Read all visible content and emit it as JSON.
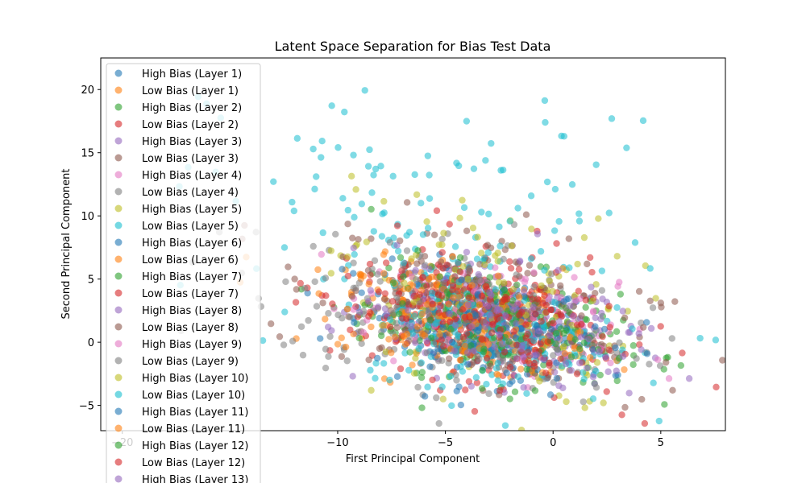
{
  "chart_data": {
    "type": "scatter",
    "title": "Latent Space Separation for Bias Test Data",
    "xlabel": "First Principal Component",
    "ylabel": "Second Principal Component",
    "xlim": [
      -21,
      8
    ],
    "ylim": [
      -7,
      22.5
    ],
    "xticks": [
      -20,
      -10,
      -5,
      0,
      5
    ],
    "xtick_labels": [
      "−20",
      "−10",
      "−5",
      "0",
      "5"
    ],
    "yticks": [
      -5,
      0,
      5,
      10,
      15,
      20
    ],
    "ytick_labels": [
      "−5",
      "0",
      "5",
      "10",
      "15",
      "20"
    ],
    "grid": false,
    "legend_position": "top-left",
    "series": [
      {
        "name": "High Bias (Layer 1)",
        "color": "#1f77b4",
        "center": [
          -3.5,
          1.5
        ],
        "spread": [
          2.8,
          2.0
        ],
        "count": 90
      },
      {
        "name": "Low Bias (Layer 1)",
        "color": "#ff7f0e",
        "center": [
          -4.5,
          2.0
        ],
        "spread": [
          2.8,
          2.0
        ],
        "count": 90
      },
      {
        "name": "High Bias (Layer 2)",
        "color": "#2ca02c",
        "center": [
          -3.0,
          1.5
        ],
        "spread": [
          3.0,
          2.2
        ],
        "count": 90
      },
      {
        "name": "Low Bias (Layer 2)",
        "color": "#d62728",
        "center": [
          -4.0,
          2.2
        ],
        "spread": [
          3.2,
          2.4
        ],
        "count": 110
      },
      {
        "name": "High Bias (Layer 3)",
        "color": "#9467bd",
        "center": [
          -2.5,
          1.2
        ],
        "spread": [
          3.0,
          2.2
        ],
        "count": 70
      },
      {
        "name": "Low Bias (Layer 3)",
        "color": "#8c564b",
        "center": [
          -3.5,
          3.5
        ],
        "spread": [
          3.8,
          3.0
        ],
        "count": 110
      },
      {
        "name": "High Bias (Layer 4)",
        "color": "#e377c2",
        "center": [
          -3.0,
          1.8
        ],
        "spread": [
          3.0,
          2.2
        ],
        "count": 70
      },
      {
        "name": "Low Bias (Layer 4)",
        "color": "#7f7f7f",
        "center": [
          -4.5,
          2.5
        ],
        "spread": [
          4.2,
          3.2
        ],
        "count": 130
      },
      {
        "name": "High Bias (Layer 5)",
        "color": "#bcbd22",
        "center": [
          -3.5,
          4.0
        ],
        "spread": [
          3.5,
          4.0
        ],
        "count": 70
      },
      {
        "name": "Low Bias (Layer 5)",
        "color": "#17becf",
        "center": [
          -5.0,
          8.5
        ],
        "spread": [
          5.5,
          5.5
        ],
        "count": 140
      },
      {
        "name": "High Bias (Layer 6)",
        "color": "#1f77b4",
        "center": [
          -3.0,
          1.0
        ],
        "spread": [
          2.8,
          2.0
        ],
        "count": 80
      },
      {
        "name": "Low Bias (Layer 6)",
        "color": "#ff7f0e",
        "center": [
          -4.0,
          1.8
        ],
        "spread": [
          2.8,
          2.0
        ],
        "count": 90
      },
      {
        "name": "High Bias (Layer 7)",
        "color": "#2ca02c",
        "center": [
          -3.0,
          1.5
        ],
        "spread": [
          3.0,
          2.2
        ],
        "count": 80
      },
      {
        "name": "Low Bias (Layer 7)",
        "color": "#d62728",
        "center": [
          -3.5,
          2.5
        ],
        "spread": [
          3.2,
          2.4
        ],
        "count": 110
      },
      {
        "name": "High Bias (Layer 8)",
        "color": "#9467bd",
        "center": [
          -2.5,
          1.0
        ],
        "spread": [
          3.2,
          2.2
        ],
        "count": 70
      },
      {
        "name": "Low Bias (Layer 8)",
        "color": "#8c564b",
        "center": [
          -3.0,
          2.0
        ],
        "spread": [
          3.8,
          2.6
        ],
        "count": 110
      },
      {
        "name": "High Bias (Layer 9)",
        "color": "#e377c2",
        "center": [
          -3.0,
          1.5
        ],
        "spread": [
          3.0,
          2.2
        ],
        "count": 70
      },
      {
        "name": "Low Bias (Layer 9)",
        "color": "#7f7f7f",
        "center": [
          -4.0,
          1.5
        ],
        "spread": [
          4.0,
          2.6
        ],
        "count": 130
      },
      {
        "name": "High Bias (Layer 10)",
        "color": "#bcbd22",
        "center": [
          -2.5,
          3.0
        ],
        "spread": [
          3.5,
          3.8
        ],
        "count": 60
      },
      {
        "name": "Low Bias (Layer 10)",
        "color": "#17becf",
        "center": [
          -3.0,
          0.5
        ],
        "spread": [
          2.8,
          2.2
        ],
        "count": 150
      },
      {
        "name": "High Bias (Layer 11)",
        "color": "#1f77b4",
        "center": [
          -3.0,
          1.0
        ],
        "spread": [
          2.8,
          2.0
        ],
        "count": 80
      },
      {
        "name": "Low Bias (Layer 11)",
        "color": "#ff7f0e",
        "center": [
          -4.0,
          1.5
        ],
        "spread": [
          2.8,
          2.0
        ],
        "count": 90
      },
      {
        "name": "High Bias (Layer 12)",
        "color": "#2ca02c",
        "center": [
          -2.5,
          1.2
        ],
        "spread": [
          3.0,
          2.2
        ],
        "count": 80
      },
      {
        "name": "Low Bias (Layer 12)",
        "color": "#d62728",
        "center": [
          -3.0,
          1.5
        ],
        "spread": [
          3.2,
          2.4
        ],
        "count": 110
      },
      {
        "name": "High Bias (Layer 13)",
        "color": "#9467bd",
        "center": [
          -2.0,
          1.0
        ],
        "spread": [
          3.5,
          2.2
        ],
        "count": 70
      }
    ]
  }
}
